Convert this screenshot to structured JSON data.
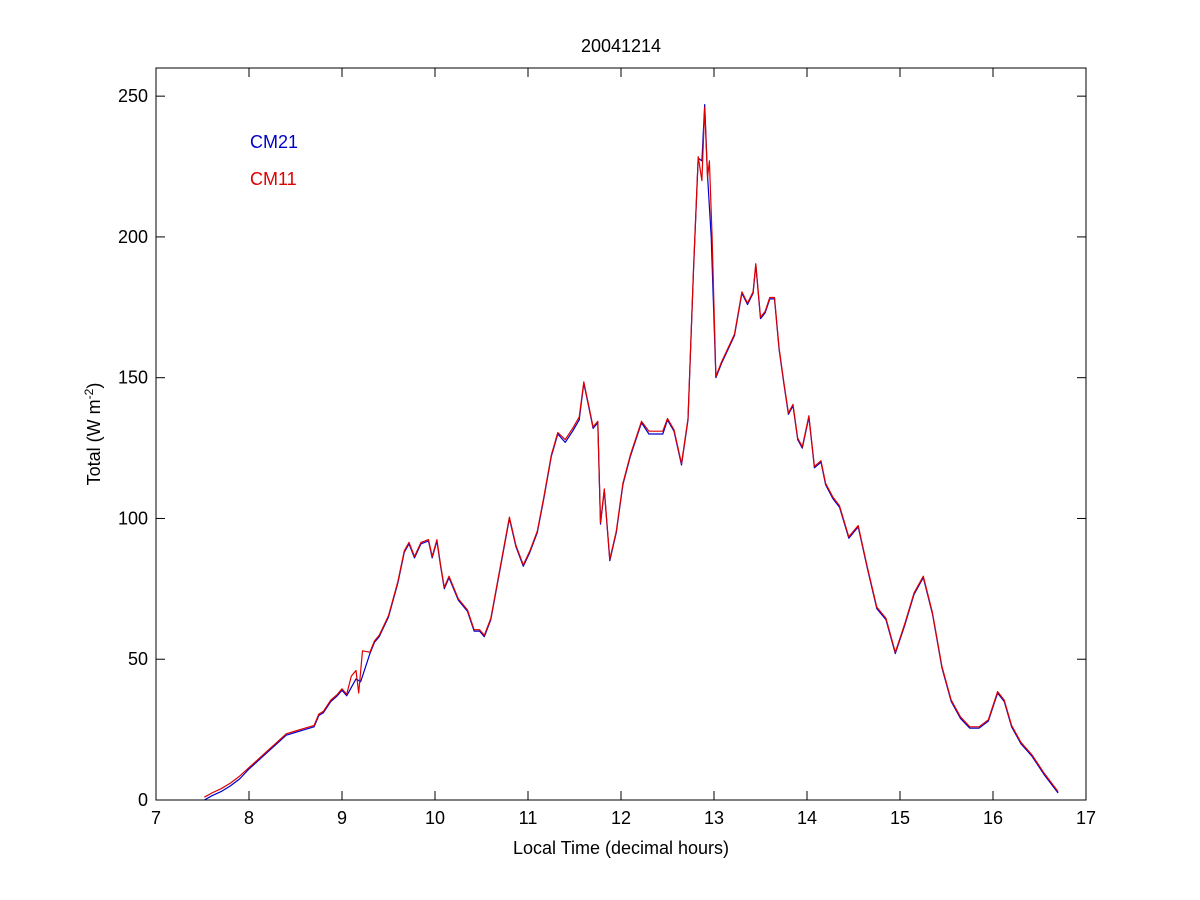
{
  "chart_data": {
    "type": "line",
    "title": "20041214",
    "xlabel": "Local Time (decimal hours)",
    "ylabel": "Total (W m-2)",
    "ylabel_base": "Total (W m",
    "ylabel_sup": "-2",
    "ylabel_tail": ")",
    "xlim": [
      7,
      17
    ],
    "ylim": [
      0,
      260
    ],
    "xticks": [
      7,
      8,
      9,
      10,
      11,
      12,
      13,
      14,
      15,
      16,
      17
    ],
    "yticks": [
      0,
      50,
      100,
      150,
      200,
      250
    ],
    "grid": false,
    "legend_position": "top-left",
    "colors": {
      "CM21": "#0000cc",
      "CM11": "#dd0000"
    },
    "series": [
      {
        "name": "CM21",
        "points": [
          [
            7.52,
            0
          ],
          [
            7.6,
            1.5
          ],
          [
            7.7,
            3
          ],
          [
            7.8,
            5
          ],
          [
            7.9,
            7.5
          ],
          [
            8.0,
            11
          ],
          [
            8.1,
            14
          ],
          [
            8.2,
            17
          ],
          [
            8.3,
            20
          ],
          [
            8.4,
            23
          ],
          [
            8.5,
            24
          ],
          [
            8.6,
            25
          ],
          [
            8.7,
            26
          ],
          [
            8.75,
            30
          ],
          [
            8.8,
            31
          ],
          [
            8.88,
            35
          ],
          [
            8.95,
            37
          ],
          [
            9.0,
            39
          ],
          [
            9.05,
            37
          ],
          [
            9.1,
            40
          ],
          [
            9.15,
            43
          ],
          [
            9.2,
            42
          ],
          [
            9.25,
            47
          ],
          [
            9.3,
            52
          ],
          [
            9.35,
            56
          ],
          [
            9.4,
            58
          ],
          [
            9.5,
            65
          ],
          [
            9.6,
            77
          ],
          [
            9.67,
            88
          ],
          [
            9.72,
            91
          ],
          [
            9.78,
            86
          ],
          [
            9.85,
            91
          ],
          [
            9.93,
            92
          ],
          [
            9.97,
            86
          ],
          [
            10.02,
            92
          ],
          [
            10.06,
            83
          ],
          [
            10.1,
            75
          ],
          [
            10.15,
            79
          ],
          [
            10.25,
            71
          ],
          [
            10.35,
            67
          ],
          [
            10.42,
            60
          ],
          [
            10.48,
            60
          ],
          [
            10.53,
            58
          ],
          [
            10.6,
            64
          ],
          [
            10.7,
            82
          ],
          [
            10.8,
            100
          ],
          [
            10.87,
            90
          ],
          [
            10.95,
            83
          ],
          [
            11.02,
            88
          ],
          [
            11.1,
            95
          ],
          [
            11.17,
            107
          ],
          [
            11.25,
            122
          ],
          [
            11.32,
            130
          ],
          [
            11.4,
            127
          ],
          [
            11.48,
            131
          ],
          [
            11.55,
            135
          ],
          [
            11.6,
            148
          ],
          [
            11.65,
            140
          ],
          [
            11.7,
            132
          ],
          [
            11.75,
            134
          ],
          [
            11.78,
            98
          ],
          [
            11.82,
            110
          ],
          [
            11.88,
            85
          ],
          [
            11.95,
            95
          ],
          [
            12.02,
            112
          ],
          [
            12.1,
            122
          ],
          [
            12.22,
            134
          ],
          [
            12.3,
            130
          ],
          [
            12.38,
            130
          ],
          [
            12.45,
            130
          ],
          [
            12.5,
            135
          ],
          [
            12.57,
            131
          ],
          [
            12.65,
            119
          ],
          [
            12.72,
            135
          ],
          [
            12.78,
            188
          ],
          [
            12.83,
            228
          ],
          [
            12.87,
            227
          ],
          [
            12.9,
            247
          ],
          [
            12.93,
            222
          ],
          [
            12.97,
            200
          ],
          [
            13.02,
            150
          ],
          [
            13.08,
            155
          ],
          [
            13.15,
            160
          ],
          [
            13.22,
            165
          ],
          [
            13.3,
            180
          ],
          [
            13.36,
            176
          ],
          [
            13.42,
            180
          ],
          [
            13.45,
            190
          ],
          [
            13.5,
            171
          ],
          [
            13.55,
            173
          ],
          [
            13.6,
            178
          ],
          [
            13.65,
            178
          ],
          [
            13.7,
            160
          ],
          [
            13.75,
            148
          ],
          [
            13.8,
            137
          ],
          [
            13.85,
            140
          ],
          [
            13.9,
            128
          ],
          [
            13.95,
            125
          ],
          [
            14.02,
            136
          ],
          [
            14.08,
            118
          ],
          [
            14.15,
            120
          ],
          [
            14.2,
            112
          ],
          [
            14.28,
            107
          ],
          [
            14.35,
            104
          ],
          [
            14.45,
            93
          ],
          [
            14.55,
            97
          ],
          [
            14.65,
            82
          ],
          [
            14.75,
            68
          ],
          [
            14.85,
            64
          ],
          [
            14.95,
            52
          ],
          [
            15.05,
            62
          ],
          [
            15.15,
            73
          ],
          [
            15.25,
            79
          ],
          [
            15.35,
            66
          ],
          [
            15.45,
            47
          ],
          [
            15.55,
            35
          ],
          [
            15.65,
            29
          ],
          [
            15.75,
            25.5
          ],
          [
            15.85,
            25.5
          ],
          [
            15.95,
            28
          ],
          [
            16.05,
            38
          ],
          [
            16.12,
            35
          ],
          [
            16.2,
            26
          ],
          [
            16.3,
            20
          ],
          [
            16.42,
            15.5
          ],
          [
            16.55,
            9
          ],
          [
            16.7,
            2.5
          ]
        ]
      },
      {
        "name": "CM11",
        "points": [
          [
            7.52,
            1
          ],
          [
            7.6,
            2.5
          ],
          [
            7.7,
            4
          ],
          [
            7.8,
            6
          ],
          [
            7.9,
            8.5
          ],
          [
            8.0,
            11.5
          ],
          [
            8.1,
            14.5
          ],
          [
            8.2,
            17.5
          ],
          [
            8.3,
            20.5
          ],
          [
            8.4,
            23.5
          ],
          [
            8.5,
            24.5
          ],
          [
            8.6,
            25.5
          ],
          [
            8.7,
            26.5
          ],
          [
            8.75,
            30.5
          ],
          [
            8.8,
            31.5
          ],
          [
            8.88,
            35.5
          ],
          [
            8.95,
            37.5
          ],
          [
            9.0,
            39.5
          ],
          [
            9.05,
            37.5
          ],
          [
            9.1,
            44
          ],
          [
            9.15,
            46
          ],
          [
            9.18,
            38
          ],
          [
            9.22,
            53
          ],
          [
            9.3,
            52.5
          ],
          [
            9.35,
            56.5
          ],
          [
            9.4,
            58.5
          ],
          [
            9.5,
            65.5
          ],
          [
            9.6,
            77.5
          ],
          [
            9.67,
            88.5
          ],
          [
            9.72,
            91.5
          ],
          [
            9.78,
            86.5
          ],
          [
            9.85,
            91.5
          ],
          [
            9.93,
            92.5
          ],
          [
            9.97,
            86.5
          ],
          [
            10.02,
            92.5
          ],
          [
            10.06,
            83.5
          ],
          [
            10.1,
            75.5
          ],
          [
            10.15,
            79.5
          ],
          [
            10.25,
            71.5
          ],
          [
            10.35,
            67.5
          ],
          [
            10.42,
            60.5
          ],
          [
            10.48,
            60.5
          ],
          [
            10.53,
            58.5
          ],
          [
            10.6,
            64.5
          ],
          [
            10.7,
            82.5
          ],
          [
            10.8,
            100.5
          ],
          [
            10.87,
            90.5
          ],
          [
            10.95,
            83.5
          ],
          [
            11.02,
            88.5
          ],
          [
            11.1,
            95.5
          ],
          [
            11.17,
            107.5
          ],
          [
            11.25,
            122.5
          ],
          [
            11.32,
            130.5
          ],
          [
            11.4,
            128
          ],
          [
            11.48,
            132
          ],
          [
            11.55,
            136
          ],
          [
            11.6,
            148.5
          ],
          [
            11.65,
            140.5
          ],
          [
            11.7,
            132.5
          ],
          [
            11.75,
            134.5
          ],
          [
            11.78,
            98.5
          ],
          [
            11.82,
            110.5
          ],
          [
            11.88,
            85.5
          ],
          [
            11.95,
            95.5
          ],
          [
            12.02,
            112.5
          ],
          [
            12.1,
            122.5
          ],
          [
            12.22,
            134.5
          ],
          [
            12.3,
            131
          ],
          [
            12.38,
            131
          ],
          [
            12.45,
            131
          ],
          [
            12.5,
            135.5
          ],
          [
            12.57,
            131.5
          ],
          [
            12.65,
            119.5
          ],
          [
            12.72,
            135.5
          ],
          [
            12.78,
            188.5
          ],
          [
            12.83,
            228.5
          ],
          [
            12.87,
            220
          ],
          [
            12.9,
            246
          ],
          [
            12.93,
            221
          ],
          [
            12.95,
            227
          ],
          [
            12.98,
            200
          ],
          [
            13.02,
            150.5
          ],
          [
            13.08,
            155.5
          ],
          [
            13.15,
            160.5
          ],
          [
            13.22,
            165.5
          ],
          [
            13.3,
            180.5
          ],
          [
            13.36,
            176.5
          ],
          [
            13.42,
            180.5
          ],
          [
            13.45,
            190.5
          ],
          [
            13.5,
            171.5
          ],
          [
            13.55,
            173.5
          ],
          [
            13.6,
            178.5
          ],
          [
            13.65,
            178.5
          ],
          [
            13.7,
            160.5
          ],
          [
            13.75,
            148.5
          ],
          [
            13.8,
            137.5
          ],
          [
            13.85,
            140.5
          ],
          [
            13.9,
            128.5
          ],
          [
            13.95,
            125.5
          ],
          [
            14.02,
            136.5
          ],
          [
            14.08,
            118.5
          ],
          [
            14.15,
            120.5
          ],
          [
            14.2,
            112.5
          ],
          [
            14.28,
            107.5
          ],
          [
            14.35,
            104.5
          ],
          [
            14.45,
            93.5
          ],
          [
            14.55,
            97.5
          ],
          [
            14.65,
            82.5
          ],
          [
            14.75,
            68.5
          ],
          [
            14.85,
            64.5
          ],
          [
            14.95,
            52.5
          ],
          [
            15.05,
            62.5
          ],
          [
            15.15,
            73.5
          ],
          [
            15.25,
            79.5
          ],
          [
            15.35,
            66.5
          ],
          [
            15.45,
            47.5
          ],
          [
            15.55,
            35.5
          ],
          [
            15.65,
            29.5
          ],
          [
            15.75,
            26
          ],
          [
            15.85,
            26
          ],
          [
            15.95,
            28.5
          ],
          [
            16.05,
            38.5
          ],
          [
            16.12,
            35.5
          ],
          [
            16.2,
            26.5
          ],
          [
            16.3,
            20.5
          ],
          [
            16.42,
            16
          ],
          [
            16.55,
            9.5
          ],
          [
            16.7,
            3
          ]
        ]
      }
    ]
  }
}
